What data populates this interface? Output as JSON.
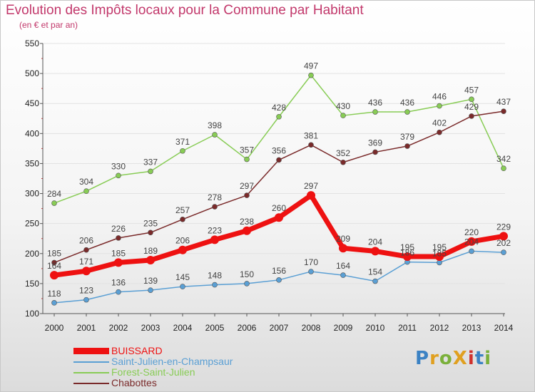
{
  "logo_text": "ProXiti",
  "colors": {
    "title": "#c2386b",
    "grid": "#e2e2e2",
    "axis": "#555555",
    "logo": [
      "#3b82c4",
      "#e0a020",
      "#7ab03a",
      "#e0a020",
      "#d0312d",
      "#3b82c4",
      "#7ab03a"
    ]
  },
  "chart_data": {
    "type": "line",
    "title": "Evolution des Impôts locaux pour la Commune par Habitant",
    "subtitle": "(en € et par an)",
    "xlabel": "",
    "ylabel": "",
    "x": [
      2000,
      2001,
      2002,
      2003,
      2004,
      2005,
      2006,
      2007,
      2008,
      2009,
      2010,
      2011,
      2012,
      2013,
      2014
    ],
    "x_labels": [
      "2000",
      "2001",
      "2002",
      "2003",
      "2004",
      "2005",
      "2006",
      "2007",
      "2008",
      "2009",
      "2010",
      "2011",
      "2012",
      "2013",
      "2014"
    ],
    "ylim": [
      100,
      550
    ],
    "yticks": [
      100,
      150,
      200,
      250,
      300,
      350,
      400,
      450,
      500,
      550
    ],
    "ytick_labels": [
      "100",
      "150",
      "200",
      "250",
      "300",
      "350",
      "400",
      "450",
      "500",
      "550"
    ],
    "grid": true,
    "legend_position": "bottom-left",
    "series": [
      {
        "name": "BUISSARD",
        "color": "#ee1111",
        "values": [
          164,
          171,
          185,
          189,
          206,
          223,
          238,
          260,
          297,
          209,
          204,
          195,
          195,
          220,
          229
        ],
        "labels": [
          "164",
          "171",
          "185",
          "189",
          "206",
          "223",
          "238",
          "260",
          "297",
          "209",
          "204",
          "195",
          "195",
          "220",
          "229"
        ]
      },
      {
        "name": "Saint-Julien-en-Champsaur",
        "color": "#5a9fd4",
        "values": [
          118,
          123,
          136,
          139,
          145,
          148,
          150,
          156,
          170,
          164,
          154,
          186,
          185,
          204,
          202
        ],
        "labels": [
          "118",
          "123",
          "136",
          "139",
          "145",
          "148",
          "150",
          "156",
          "170",
          "164",
          "154",
          "186",
          "185",
          "204",
          "202"
        ]
      },
      {
        "name": "Forest-Saint-Julien",
        "color": "#88cc55",
        "values": [
          284,
          304,
          330,
          337,
          371,
          398,
          357,
          428,
          497,
          430,
          436,
          436,
          446,
          457,
          342
        ],
        "labels": [
          "284",
          "304",
          "330",
          "337",
          "371",
          "398",
          "357",
          "428",
          "497",
          "430",
          "436",
          "436",
          "446",
          "457",
          "342"
        ]
      },
      {
        "name": "Chabottes",
        "color": "#7a2a2a",
        "values": [
          185,
          206,
          226,
          235,
          257,
          278,
          297,
          356,
          381,
          352,
          369,
          379,
          402,
          429,
          437
        ],
        "labels": [
          "185",
          "206",
          "226",
          "235",
          "257",
          "278",
          "297",
          "356",
          "381",
          "352",
          "369",
          "379",
          "402",
          "429",
          "437"
        ]
      }
    ]
  }
}
